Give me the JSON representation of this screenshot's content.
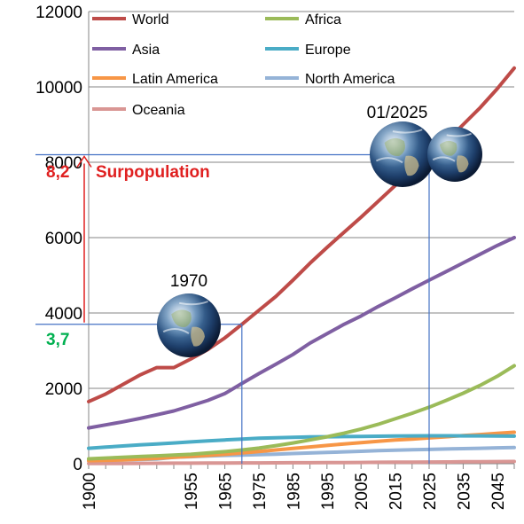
{
  "chart_data": {
    "type": "line",
    "x": [
      1900,
      1910,
      1920,
      1930,
      1940,
      1950,
      1955,
      1960,
      1965,
      1970,
      1975,
      1980,
      1985,
      1990,
      1995,
      2000,
      2005,
      2010,
      2015,
      2020,
      2025,
      2030,
      2035,
      2040,
      2045,
      2050
    ],
    "xticks": [
      "1900",
      "1955",
      "1965",
      "1975",
      "1985",
      "1995",
      "2005",
      "2015",
      "2025",
      "2035",
      "2045"
    ],
    "ylim": [
      0,
      12000
    ],
    "yticks": [
      "0",
      "2000",
      "4000",
      "6000",
      "8000",
      "10000",
      "12000"
    ],
    "grid": true,
    "legend_position": "top",
    "series": [
      {
        "name": "World",
        "color": "#be4b48",
        "values": [
          1650,
          1850,
          2100,
          2350,
          2550,
          2550,
          2780,
          3030,
          3340,
          3700,
          4070,
          4440,
          4870,
          5320,
          5740,
          6140,
          6540,
          6960,
          7380,
          7800,
          8200,
          8550,
          9000,
          9450,
          9950,
          10500
        ]
      },
      {
        "name": "Africa",
        "color": "#9bbb59",
        "values": [
          130,
          150,
          170,
          190,
          210,
          230,
          250,
          285,
          320,
          365,
          415,
          480,
          550,
          630,
          715,
          810,
          920,
          1045,
          1190,
          1340,
          1500,
          1680,
          1870,
          2080,
          2320,
          2600
        ]
      },
      {
        "name": "Asia",
        "color": "#7f5fa2",
        "values": [
          950,
          1030,
          1110,
          1200,
          1300,
          1400,
          1540,
          1680,
          1860,
          2130,
          2390,
          2640,
          2900,
          3200,
          3450,
          3700,
          3920,
          4170,
          4400,
          4640,
          4870,
          5100,
          5330,
          5560,
          5790,
          6000
        ]
      },
      {
        "name": "Europe",
        "color": "#4aacc6",
        "values": [
          410,
          440,
          470,
          500,
          525,
          550,
          580,
          605,
          630,
          655,
          675,
          690,
          700,
          710,
          715,
          720,
          725,
          730,
          735,
          740,
          742,
          742,
          740,
          738,
          735,
          732
        ]
      },
      {
        "name": "Latin America",
        "color": "#f79646",
        "values": [
          80,
          90,
          100,
          120,
          140,
          170,
          195,
          220,
          250,
          285,
          325,
          365,
          405,
          445,
          485,
          525,
          560,
          595,
          630,
          655,
          685,
          715,
          745,
          775,
          805,
          835
        ]
      },
      {
        "name": "North America",
        "color": "#95b3d7",
        "values": [
          80,
          90,
          100,
          110,
          125,
          170,
          185,
          205,
          220,
          230,
          240,
          255,
          270,
          285,
          300,
          315,
          330,
          345,
          360,
          370,
          380,
          390,
          400,
          410,
          420,
          430
        ]
      },
      {
        "name": "Oceania",
        "color": "#d99694",
        "values": [
          6,
          7,
          8,
          10,
          11,
          13,
          14,
          16,
          18,
          20,
          21,
          23,
          25,
          27,
          29,
          31,
          34,
          37,
          39,
          42,
          45,
          48,
          51,
          54,
          57,
          60
        ]
      }
    ],
    "annotations": {
      "year_1970": "1970",
      "year_2025": "01/2025",
      "value_start": "3,7",
      "value_end": "8,2",
      "label": "Surpopulation",
      "start_color": "#00b050",
      "end_color": "#e02020",
      "globe_icon": "earth-globe-icon"
    }
  }
}
